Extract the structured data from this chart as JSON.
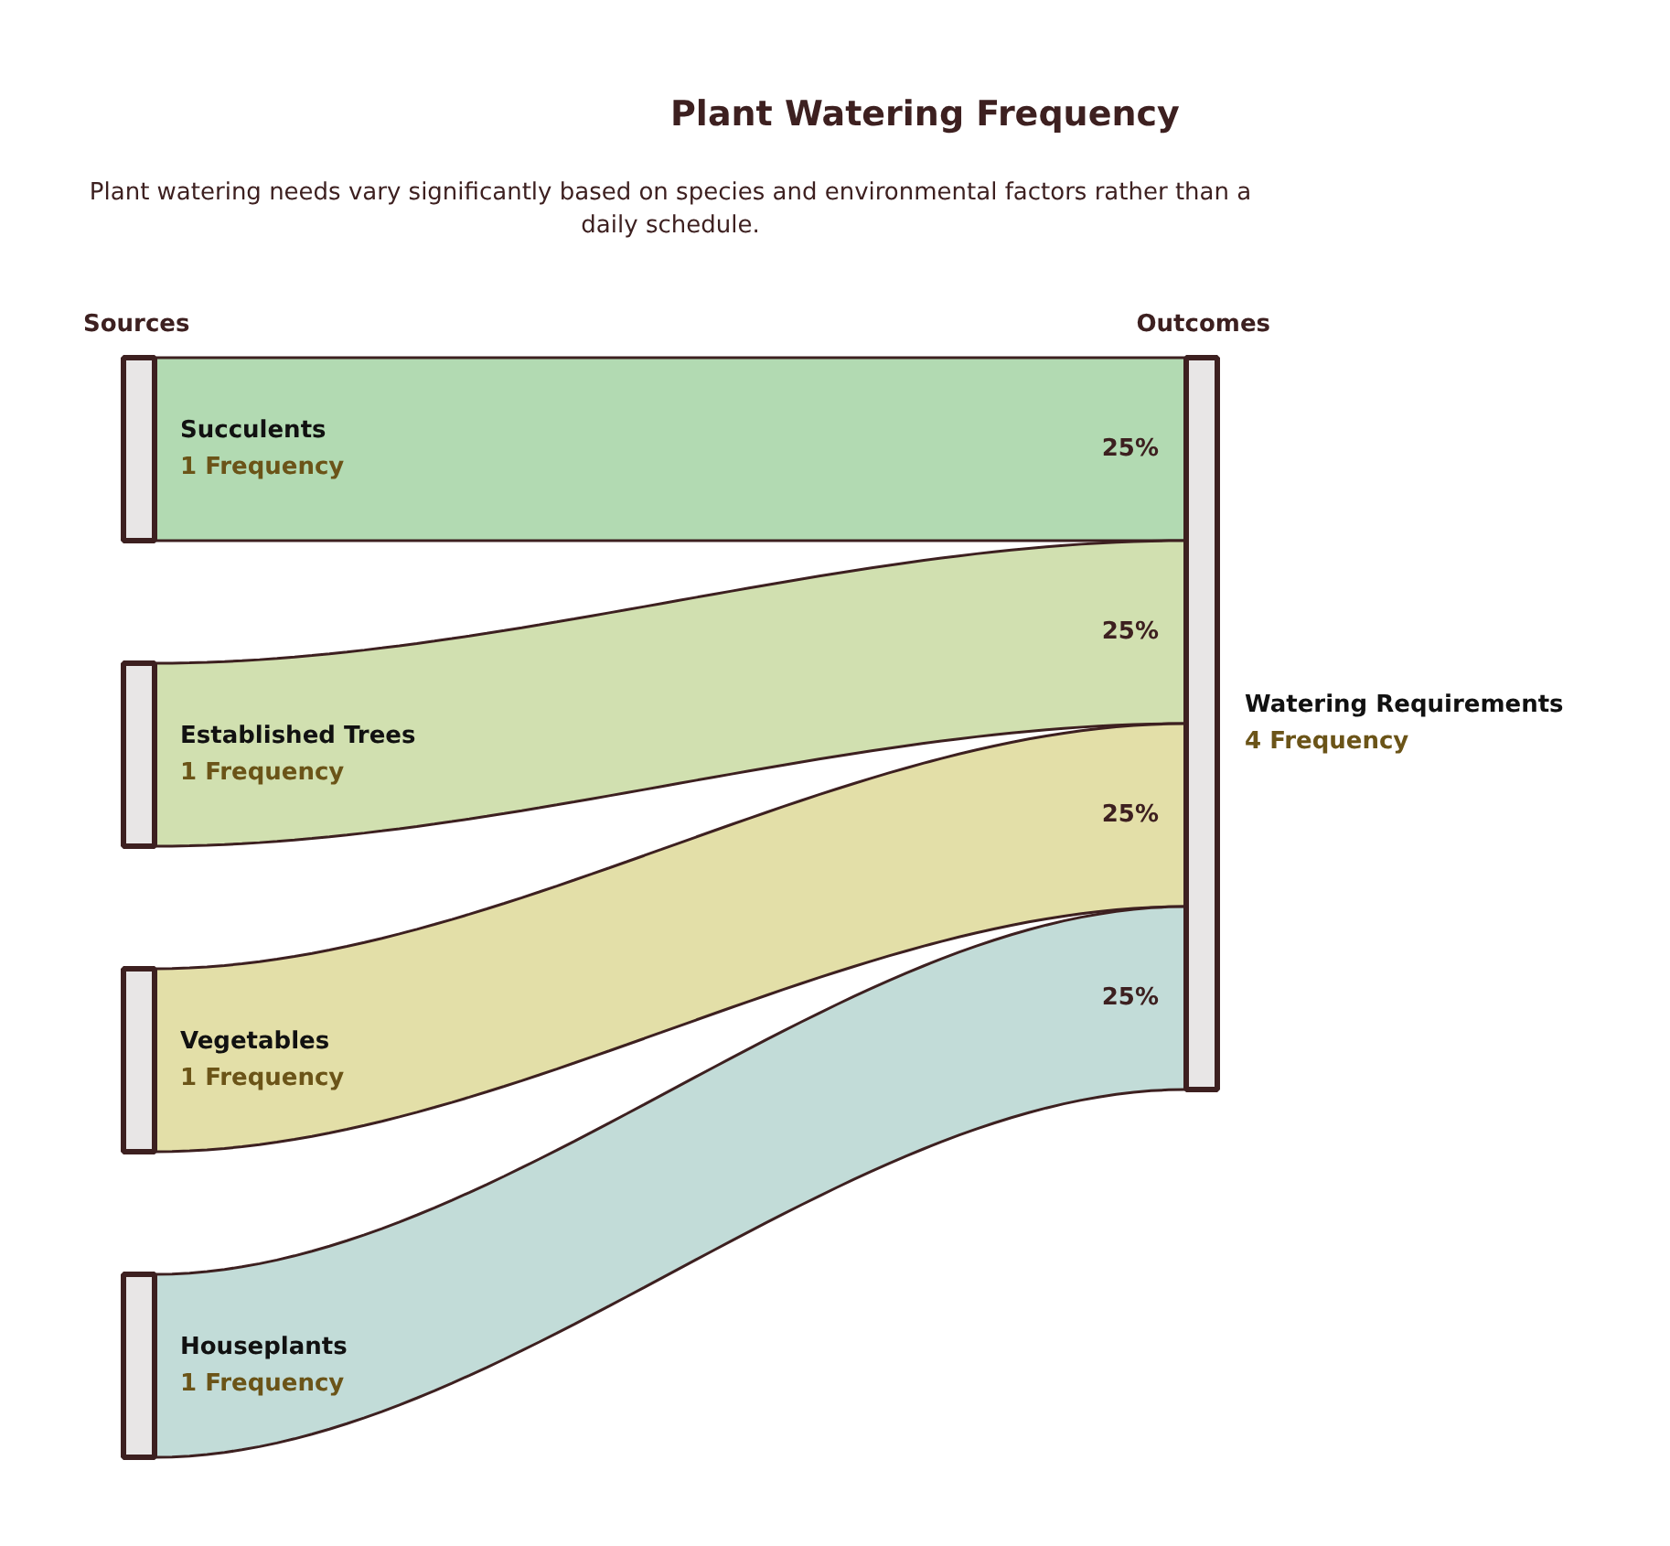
{
  "chart_data": {
    "type": "other",
    "title": "Plant Watering Frequency",
    "subtitle": "Plant watering needs vary significantly based on species and environmental factors rather than a daily schedule.",
    "categories": [
      "Succulents",
      "Established Trees",
      "Vegetables",
      "Houseplants"
    ],
    "values": [
      1,
      1,
      1,
      1
    ],
    "value_labels": [
      "1 Frequency",
      "1 Frequency",
      "1 Frequency",
      "1 Frequency"
    ],
    "colors": [
      "#b2dab2",
      "#d1e0b0",
      "#e3dfa8",
      "#c2dcd8"
    ],
    "annotations": [
      "Sources",
      "Outcomes",
      "Watering Requirements",
      "4 Frequency",
      "25%",
      "25%",
      "25%",
      "25%"
    ]
  }
}
